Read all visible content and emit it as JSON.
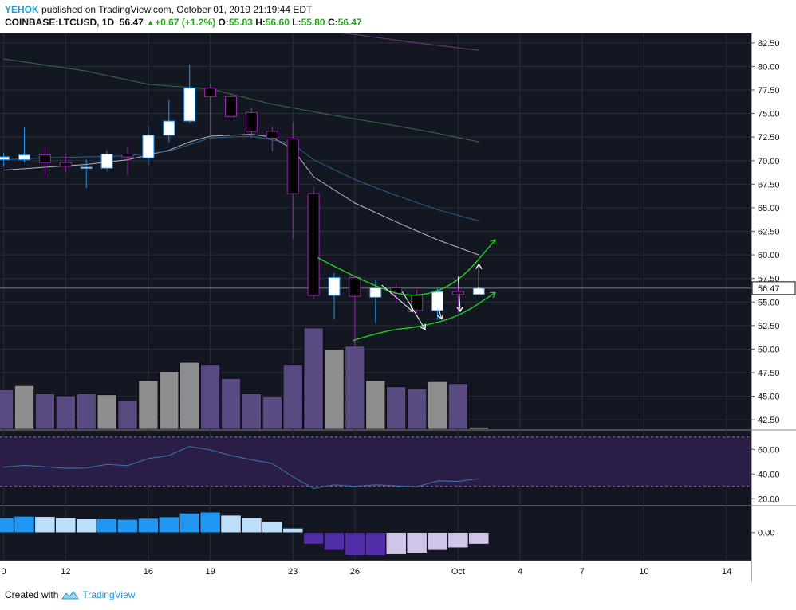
{
  "header": {
    "author": "YEHOK",
    "published": "published on TradingView.com, October 01, 2019 21:19:44 EDT",
    "symbol": "COINBASE:LTCUSD, 1D",
    "last": "56.47",
    "change": "+0.67 (+1.2%)",
    "o_label": "O:",
    "o": "55.83",
    "h_label": "H:",
    "h": "56.60",
    "l_label": "L:",
    "l": "55.80",
    "c_label": "C:",
    "c": "56.47"
  },
  "footer": {
    "created_with": "Created with",
    "brand": "TradingView"
  },
  "colors": {
    "background": "#131722",
    "grid": "#2a2e39",
    "candle_up": "#ffffff",
    "candle_down": "#000000",
    "wick_up": "#2196f3",
    "wick_down": "#9c27b0",
    "volume_up": "#8e8e8e",
    "volume_down": "#5a4a82",
    "ma_fast": "#d1d4dc",
    "ma_mid": "#2e6da4",
    "ma_slow": "#3f7a4f",
    "ma_long": "#7b3f8c",
    "rsi_line": "#3a78b5",
    "rsi_band": "#2a1d46",
    "macd_pos_strong": "#2196f3",
    "macd_pos_weak": "#bbdefb",
    "macd_neg_strong": "#512da8",
    "macd_neg_weak": "#d1c4e9",
    "annotation_green": "#1ed01e",
    "annotation_white": "#ffffff",
    "last_price_tag": "#ffffff"
  },
  "chart_data": [
    {
      "type": "candlestick",
      "title": "",
      "ylim": [
        41.5,
        83.5
      ],
      "y_ticks": [
        "82.50",
        "80.00",
        "77.50",
        "75.00",
        "72.50",
        "70.00",
        "67.50",
        "65.00",
        "62.50",
        "60.00",
        "57.50",
        "55.00",
        "52.50",
        "50.00",
        "47.50",
        "45.00",
        "42.50"
      ],
      "y_tick_values": [
        82.5,
        80,
        77.5,
        75,
        72.5,
        70,
        67.5,
        65,
        62.5,
        60,
        57.5,
        55,
        52.5,
        50,
        47.5,
        45,
        42.5
      ],
      "x_ticks": [
        {
          "label": "0",
          "day": 0
        },
        {
          "label": "12",
          "day": 3
        },
        {
          "label": "16",
          "day": 7
        },
        {
          "label": "19",
          "day": 10
        },
        {
          "label": "23",
          "day": 14
        },
        {
          "label": "26",
          "day": 17
        },
        {
          "label": "Oct",
          "day": 22
        },
        {
          "label": "4",
          "day": 25
        },
        {
          "label": "7",
          "day": 28
        },
        {
          "label": "10",
          "day": 31
        },
        {
          "label": "14",
          "day": 35
        }
      ],
      "last_price": 56.47,
      "last_price_label": "56.47",
      "candles": [
        {
          "day": 0,
          "o": 70.1,
          "h": 70.8,
          "l": 69.4,
          "c": 70.4
        },
        {
          "day": 1,
          "o": 70.1,
          "h": 73.5,
          "l": 69.8,
          "c": 70.6
        },
        {
          "day": 2,
          "o": 70.6,
          "h": 71.5,
          "l": 68.3,
          "c": 69.8
        },
        {
          "day": 3,
          "o": 69.8,
          "h": 70.7,
          "l": 68.8,
          "c": 69.4
        },
        {
          "day": 4,
          "o": 69.3,
          "h": 70.1,
          "l": 67.1,
          "c": 69.3
        },
        {
          "day": 5,
          "o": 69.2,
          "h": 71.1,
          "l": 68.9,
          "c": 70.7
        },
        {
          "day": 6,
          "o": 70.7,
          "h": 71.5,
          "l": 68.5,
          "c": 70.4
        },
        {
          "day": 7,
          "o": 70.3,
          "h": 73.6,
          "l": 69.5,
          "c": 72.7
        },
        {
          "day": 8,
          "o": 72.7,
          "h": 76.5,
          "l": 71.9,
          "c": 74.2
        },
        {
          "day": 9,
          "o": 74.2,
          "h": 80.2,
          "l": 74.0,
          "c": 77.7
        },
        {
          "day": 10,
          "o": 77.7,
          "h": 78.2,
          "l": 72.6,
          "c": 76.8
        },
        {
          "day": 11,
          "o": 76.8,
          "h": 77.1,
          "l": 74.5,
          "c": 74.7
        },
        {
          "day": 12,
          "o": 75.1,
          "h": 75.6,
          "l": 72.4,
          "c": 73.1
        },
        {
          "day": 13,
          "o": 73.1,
          "h": 73.6,
          "l": 71.0,
          "c": 72.4
        },
        {
          "day": 14,
          "o": 72.3,
          "h": 74.1,
          "l": 61.7,
          "c": 66.5
        },
        {
          "day": 15,
          "o": 66.5,
          "h": 67.3,
          "l": 55.3,
          "c": 55.7
        },
        {
          "day": 16,
          "o": 55.7,
          "h": 58.1,
          "l": 53.2,
          "c": 57.6
        },
        {
          "day": 17,
          "o": 57.6,
          "h": 57.9,
          "l": 50.2,
          "c": 55.6
        },
        {
          "day": 18,
          "o": 55.5,
          "h": 57.3,
          "l": 52.8,
          "c": 56.5
        },
        {
          "day": 19,
          "o": 56.5,
          "h": 57.0,
          "l": 54.8,
          "c": 55.9
        },
        {
          "day": 20,
          "o": 55.7,
          "h": 56.3,
          "l": 53.8,
          "c": 54.1
        },
        {
          "day": 21,
          "o": 54.1,
          "h": 56.5,
          "l": 53.1,
          "c": 56.1
        },
        {
          "day": 22,
          "o": 56.1,
          "h": 57.5,
          "l": 53.8,
          "c": 55.8
        },
        {
          "day": 23,
          "o": 55.8,
          "h": 56.6,
          "l": 55.8,
          "c": 56.47
        }
      ],
      "series": [
        {
          "name": "",
          "values": [
            [
              0,
              69.0
            ],
            [
              2,
              69.3
            ],
            [
              4,
              69.6
            ],
            [
              6,
              70.1
            ],
            [
              8,
              71.1
            ],
            [
              9,
              72.0
            ],
            [
              10,
              72.6
            ],
            [
              12,
              72.8
            ],
            [
              13,
              72.5
            ],
            [
              14,
              71.2
            ],
            [
              15,
              68.3
            ],
            [
              17,
              65.5
            ],
            [
              19,
              63.5
            ],
            [
              21,
              61.6
            ],
            [
              23,
              60.0
            ]
          ]
        },
        {
          "name": "",
          "values": [
            [
              0,
              70.1
            ],
            [
              2,
              70.3
            ],
            [
              4,
              70.4
            ],
            [
              6,
              70.5
            ],
            [
              8,
              71.0
            ],
            [
              10,
              72.4
            ],
            [
              12,
              72.6
            ],
            [
              14,
              71.8
            ],
            [
              15,
              70.1
            ],
            [
              17,
              68.0
            ],
            [
              19,
              66.3
            ],
            [
              21,
              64.8
            ],
            [
              23,
              63.6
            ]
          ]
        },
        {
          "name": "",
          "values": [
            [
              0,
              80.8
            ],
            [
              4,
              79.5
            ],
            [
              7,
              78.1
            ],
            [
              10,
              77.6
            ],
            [
              13,
              76.0
            ],
            [
              16,
              74.8
            ],
            [
              19,
              73.7
            ],
            [
              21,
              72.9
            ],
            [
              23,
              72.0
            ]
          ]
        },
        {
          "name": "",
          "values": [
            [
              14,
              84.0
            ],
            [
              17,
              83.4
            ],
            [
              20,
              82.5
            ],
            [
              23,
              81.7
            ]
          ]
        }
      ],
      "annotations": [
        {
          "type": "arc",
          "color": "green",
          "points": [
            [
              15.2,
              59.7
            ],
            [
              18,
              56.5
            ],
            [
              20,
              55.4
            ],
            [
              22,
              57.0
            ],
            [
              23.8,
              61.6
            ]
          ]
        },
        {
          "type": "arc",
          "color": "green",
          "points": [
            [
              16.9,
              50.9
            ],
            [
              18.5,
              52.0
            ],
            [
              20,
              52.3
            ],
            [
              22,
              53.4
            ],
            [
              23.8,
              56.0
            ]
          ]
        },
        {
          "type": "arrow",
          "color": "white",
          "from": [
            18.3,
            56.8
          ],
          "to": [
            19.8,
            54.0
          ]
        },
        {
          "type": "arrow",
          "color": "white",
          "from": [
            19.3,
            56.1
          ],
          "to": [
            20.4,
            52.1
          ]
        },
        {
          "type": "arrow",
          "color": "white",
          "from": [
            20.9,
            55.6
          ],
          "to": [
            21.2,
            53.2
          ]
        },
        {
          "type": "arrow",
          "color": "white",
          "from": [
            22.0,
            57.7
          ],
          "to": [
            22.1,
            54.0
          ]
        },
        {
          "type": "double-arrow",
          "color": "white",
          "from": [
            23.0,
            56.5
          ],
          "to": [
            23.0,
            59.0
          ]
        }
      ]
    },
    {
      "type": "bar",
      "title": "",
      "values": [
        39,
        43,
        35,
        33,
        35,
        34,
        28,
        48,
        57,
        66,
        64,
        50,
        35,
        32,
        64,
        100,
        79,
        82,
        48,
        42,
        40,
        47,
        45,
        2
      ],
      "directions": [
        "down",
        "up",
        "down",
        "down",
        "down",
        "up",
        "down",
        "up",
        "up",
        "up",
        "down",
        "down",
        "down",
        "down",
        "down",
        "down",
        "up",
        "down",
        "up",
        "down",
        "down",
        "up",
        "down",
        "up"
      ]
    },
    {
      "type": "line",
      "title": "",
      "y_ticks": [
        "60.00",
        "40.00",
        "20.00"
      ],
      "y_tick_values": [
        60,
        40,
        20
      ],
      "ylim": [
        15,
        75
      ],
      "band": [
        30,
        70
      ],
      "values": [
        [
          0,
          45.5
        ],
        [
          1,
          47.0
        ],
        [
          2,
          45.8
        ],
        [
          3,
          44.6
        ],
        [
          4,
          44.8
        ],
        [
          5,
          47.8
        ],
        [
          6,
          46.8
        ],
        [
          7,
          52.5
        ],
        [
          8,
          55.0
        ],
        [
          9,
          62.3
        ],
        [
          10,
          59.5
        ],
        [
          11,
          55.0
        ],
        [
          12,
          51.5
        ],
        [
          13,
          48.5
        ],
        [
          14,
          37.8
        ],
        [
          15,
          28.2
        ],
        [
          16,
          31.2
        ],
        [
          17,
          30.0
        ],
        [
          18,
          31.3
        ],
        [
          19,
          30.4
        ],
        [
          20,
          29.6
        ],
        [
          21,
          34.4
        ],
        [
          22,
          34.0
        ],
        [
          23,
          36.2
        ]
      ]
    },
    {
      "type": "bar",
      "title": "",
      "y_ticks": [
        "0.00"
      ],
      "y_tick_values": [
        0
      ],
      "ylim": [
        -2.7,
        2.5
      ],
      "values": [
        1.4,
        1.55,
        1.52,
        1.4,
        1.3,
        1.3,
        1.25,
        1.35,
        1.5,
        1.85,
        1.95,
        1.65,
        1.4,
        1.05,
        0.4,
        -1.1,
        -1.7,
        -2.2,
        -2.2,
        -2.1,
        -1.95,
        -1.7,
        -1.45,
        -1.1
      ],
      "shade": [
        "strong",
        "strong",
        "weak",
        "weak",
        "weak",
        "strong",
        "strong",
        "strong",
        "strong",
        "strong",
        "strong",
        "weak",
        "weak",
        "weak",
        "weak",
        "strong",
        "strong",
        "strong",
        "strong",
        "weak",
        "weak",
        "weak",
        "weak",
        "weak"
      ]
    }
  ]
}
